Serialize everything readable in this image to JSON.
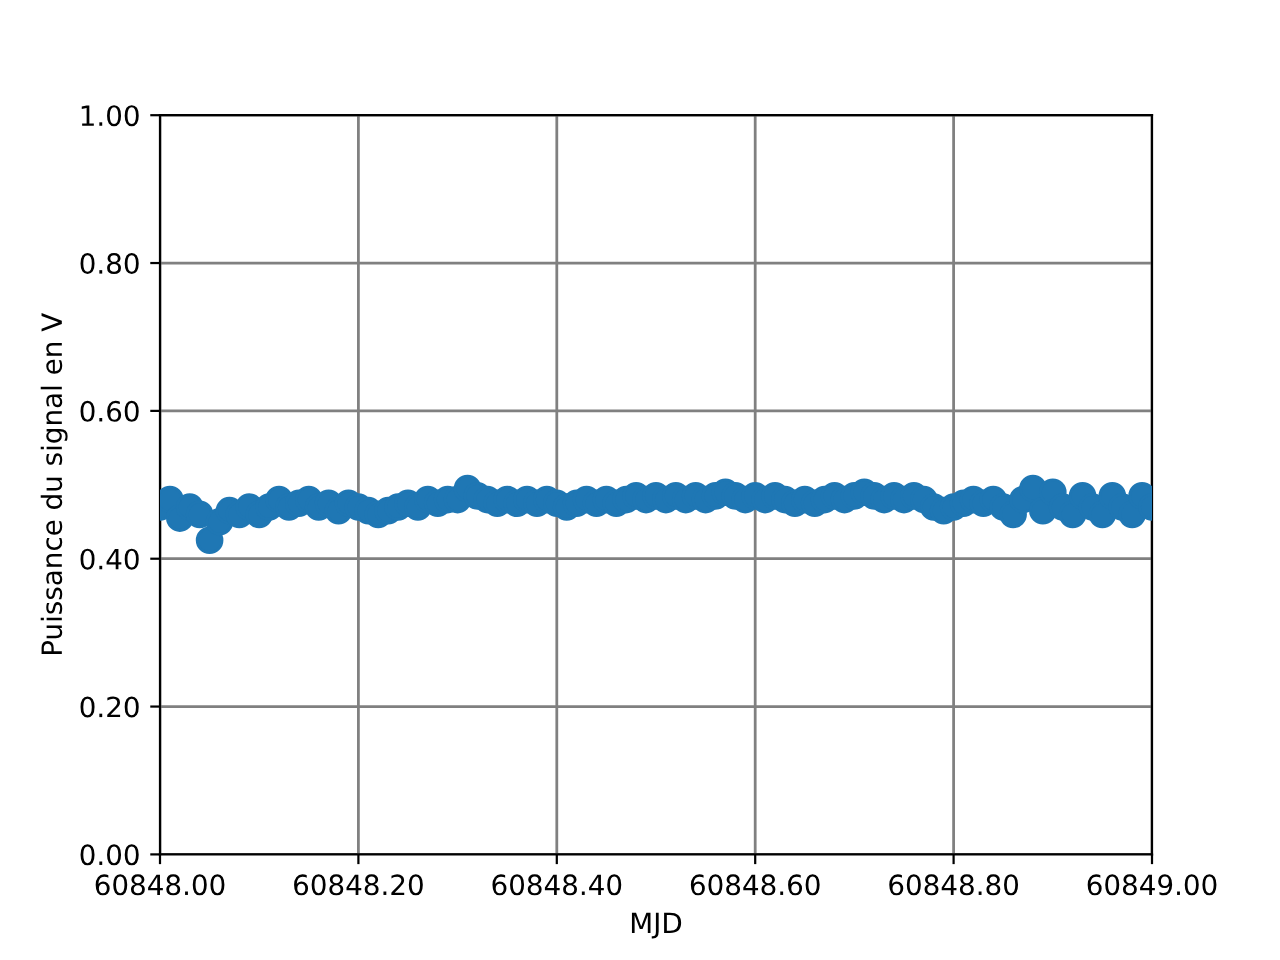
{
  "chart_data": {
    "type": "scatter",
    "xlabel": "MJD",
    "ylabel": "Puissance du signal en V",
    "x": [
      60848.0,
      60848.01,
      60848.02,
      60848.03,
      60848.04,
      60848.05,
      60848.06,
      60848.07,
      60848.08,
      60848.09,
      60848.1,
      60848.11,
      60848.12,
      60848.13,
      60848.14,
      60848.15,
      60848.16,
      60848.17,
      60848.18,
      60848.19,
      60848.2,
      60848.21,
      60848.22,
      60848.23,
      60848.24,
      60848.25,
      60848.26,
      60848.27,
      60848.28,
      60848.29,
      60848.3,
      60848.31,
      60848.32,
      60848.33,
      60848.34,
      60848.35,
      60848.36,
      60848.37,
      60848.38,
      60848.39,
      60848.4,
      60848.41,
      60848.42,
      60848.43,
      60848.44,
      60848.45,
      60848.46,
      60848.47,
      60848.48,
      60848.49,
      60848.5,
      60848.51,
      60848.52,
      60848.53,
      60848.54,
      60848.55,
      60848.56,
      60848.57,
      60848.58,
      60848.59,
      60848.6,
      60848.61,
      60848.62,
      60848.63,
      60848.64,
      60848.65,
      60848.66,
      60848.67,
      60848.68,
      60848.69,
      60848.7,
      60848.71,
      60848.72,
      60848.73,
      60848.74,
      60848.75,
      60848.76,
      60848.77,
      60848.78,
      60848.79,
      60848.8,
      60848.81,
      60848.82,
      60848.83,
      60848.84,
      60848.85,
      60848.86,
      60848.87,
      60848.88,
      60848.89,
      60848.9,
      60848.91,
      60848.92,
      60848.93,
      60848.94,
      60848.95,
      60848.96,
      60848.97,
      60848.98,
      60848.99,
      60849.0
    ],
    "series": [
      {
        "color": "#1f77b4",
        "values": [
          0.47,
          0.48,
          0.455,
          0.47,
          0.46,
          0.425,
          0.45,
          0.465,
          0.46,
          0.47,
          0.46,
          0.47,
          0.48,
          0.47,
          0.475,
          0.48,
          0.47,
          0.475,
          0.465,
          0.475,
          0.47,
          0.465,
          0.46,
          0.465,
          0.47,
          0.475,
          0.47,
          0.48,
          0.475,
          0.48,
          0.48,
          0.495,
          0.485,
          0.48,
          0.475,
          0.48,
          0.475,
          0.48,
          0.475,
          0.48,
          0.475,
          0.47,
          0.475,
          0.48,
          0.475,
          0.48,
          0.475,
          0.48,
          0.485,
          0.48,
          0.485,
          0.48,
          0.485,
          0.48,
          0.485,
          0.48,
          0.485,
          0.49,
          0.485,
          0.48,
          0.485,
          0.48,
          0.485,
          0.48,
          0.475,
          0.48,
          0.475,
          0.48,
          0.485,
          0.48,
          0.485,
          0.49,
          0.485,
          0.48,
          0.485,
          0.48,
          0.485,
          0.48,
          0.47,
          0.465,
          0.47,
          0.475,
          0.48,
          0.475,
          0.48,
          0.47,
          0.46,
          0.48,
          0.495,
          0.465,
          0.49,
          0.47,
          0.46,
          0.485,
          0.47,
          0.46,
          0.485,
          0.47,
          0.46,
          0.485,
          0.47
        ]
      }
    ],
    "xlim": [
      60848.0,
      60849.0
    ],
    "xticks": [
      {
        "value": 60848.0,
        "label": "60848.00"
      },
      {
        "value": 60848.2,
        "label": "60848.20"
      },
      {
        "value": 60848.4,
        "label": "60848.40"
      },
      {
        "value": 60848.6,
        "label": "60848.60"
      },
      {
        "value": 60848.8,
        "label": "60848.80"
      },
      {
        "value": 60849.0,
        "label": "60849.00"
      }
    ],
    "ylim": [
      0.0,
      1.0
    ],
    "yticks": [
      {
        "value": 0.0,
        "label": "0.00"
      },
      {
        "value": 0.2,
        "label": "0.20"
      },
      {
        "value": 0.4,
        "label": "0.40"
      },
      {
        "value": 0.6,
        "label": "0.60"
      },
      {
        "value": 0.8,
        "label": "0.80"
      },
      {
        "value": 1.0,
        "label": "1.00"
      }
    ],
    "grid": true,
    "marker": "circle"
  }
}
